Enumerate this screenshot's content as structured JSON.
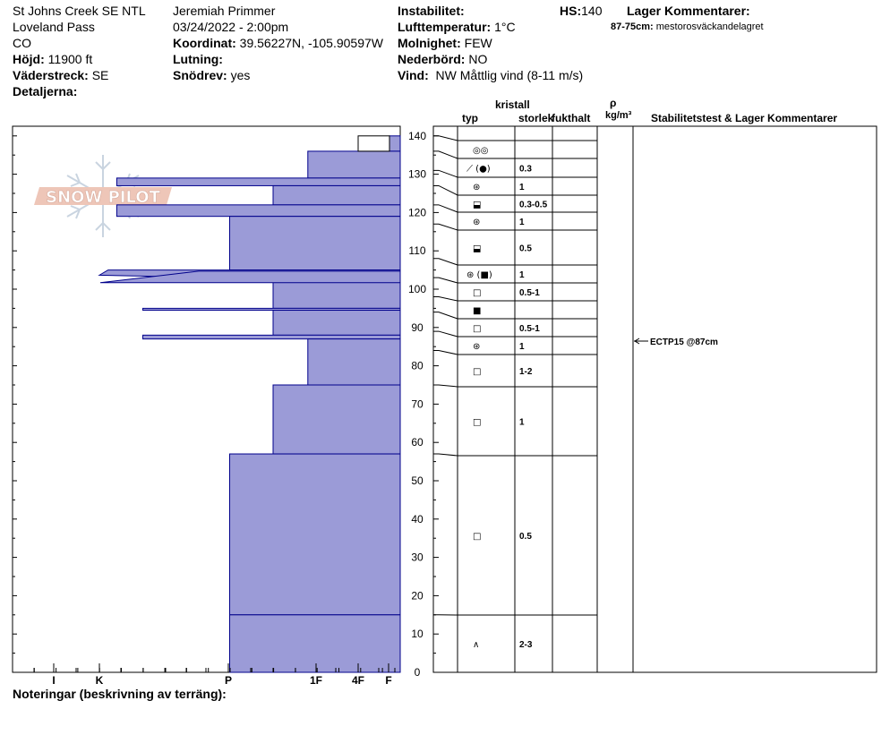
{
  "header": {
    "location": "St Johns Creek SE NTL",
    "area": "Loveland Pass",
    "state": "CO",
    "elevation_label": "Höjd:",
    "elevation_value": "11900 ft",
    "aspect_label": "Väderstreck:",
    "aspect_value": "SE",
    "details_label": "Detaljerna:",
    "observer": "Jeremiah Primmer",
    "datetime": "03/24/2022 - 2:00pm",
    "coord_label": "Koordinat:",
    "coord_value": "39.56227N, -105.90597W",
    "slope_label": "Lutning:",
    "slope_value": "",
    "blowing_label": "Snödrev:",
    "blowing_value": "yes",
    "instability_label": "Instabilitet:",
    "instability_value": "",
    "airtemp_label": "Lufttemperatur:",
    "airtemp_value": "1°C",
    "sky_label": "Molnighet:",
    "sky_value": "FEW",
    "precip_label": "Nederbörd:",
    "precip_value": "NO",
    "wind_label": "Vind:",
    "wind_value": "NW Måttlig vind (8-11 m/s)",
    "hs_label": "HS:",
    "hs_value": "140",
    "layer_comments_label": "Lager Kommentarer:",
    "layer_comment_range": "87-75cm:",
    "layer_comment_text": "mestorosväckandelagret",
    "notes_label": "Noteringar (beskrivning av terräng):"
  },
  "logo_text": "SNOW PILOT",
  "columns": {
    "crystal": "kristall",
    "type": "typ",
    "size": "storlek",
    "moisture": "fukthalt",
    "rho": "ρ",
    "density_unit": "kg/m³",
    "stability": "Stabilitetstest & Lager Kommentarer"
  },
  "hardness_scale": [
    "I",
    "K",
    "P",
    "1F",
    "4F",
    "F"
  ],
  "test_result": "ECTP15 @87cm",
  "test_depth": 87,
  "layer_colors": {
    "fill": "#9b9bd7",
    "stroke": "#00008b"
  },
  "chart_data": {
    "type": "snow-profile",
    "ylim": [
      0,
      140
    ],
    "y_ticks": [
      0,
      10,
      20,
      30,
      40,
      50,
      60,
      70,
      80,
      90,
      100,
      110,
      120,
      130,
      140
    ],
    "hardness_positions": {
      "I": 0,
      "K": 1,
      "P": 3,
      "1F": 5,
      "4F": 6,
      "F": 6.7,
      "Fist": 7
    },
    "hardness_profile": [
      {
        "bottom": 136,
        "top": 140,
        "hardness": "F-"
      },
      {
        "bottom": 129,
        "top": 136,
        "hardness": "F"
      },
      {
        "bottom": 127,
        "top": 129,
        "hardness": "P+"
      },
      {
        "bottom": 122,
        "top": 127,
        "hardness": "4F"
      },
      {
        "bottom": 119,
        "top": 122,
        "hardness": "P+"
      },
      {
        "bottom": 105,
        "top": 119,
        "hardness": "1F"
      },
      {
        "bottom": 102,
        "top": 105,
        "hardness": "P+ to I"
      },
      {
        "bottom": 95,
        "top": 102,
        "hardness": "4F"
      },
      {
        "bottom": 94.5,
        "top": 95,
        "hardness": "P"
      },
      {
        "bottom": 88,
        "top": 94.5,
        "hardness": "4F"
      },
      {
        "bottom": 87,
        "top": 88,
        "hardness": "P"
      },
      {
        "bottom": 75,
        "top": 87,
        "hardness": "F"
      },
      {
        "bottom": 57,
        "top": 75,
        "hardness": "4F"
      },
      {
        "bottom": 15,
        "top": 57,
        "hardness": "1F"
      },
      {
        "bottom": 0,
        "top": 15,
        "hardness": "1F"
      }
    ],
    "layers": [
      {
        "bottom": 136,
        "top": 140,
        "type": "◎◎",
        "size": ""
      },
      {
        "bottom": 131,
        "top": 136,
        "type": "⟋ (●)",
        "size": "0.3"
      },
      {
        "bottom": 127,
        "top": 131,
        "type": "⊛",
        "size": "1"
      },
      {
        "bottom": 122,
        "top": 127,
        "type": "⬓",
        "size": "0.3-0.5"
      },
      {
        "bottom": 117,
        "top": 122,
        "type": "⊛",
        "size": "1"
      },
      {
        "bottom": 108,
        "top": 117,
        "type": "⬓",
        "size": "0.5"
      },
      {
        "bottom": 103,
        "top": 108,
        "type": "⊛ (■)",
        "size": "1"
      },
      {
        "bottom": 98,
        "top": 103,
        "type": "□",
        "size": "0.5-1"
      },
      {
        "bottom": 94,
        "top": 98,
        "type": "■",
        "size": ""
      },
      {
        "bottom": 89,
        "top": 94,
        "type": "□",
        "size": "0.5-1"
      },
      {
        "bottom": 84,
        "top": 89,
        "type": "⊛",
        "size": "1"
      },
      {
        "bottom": 75,
        "top": 84,
        "type": "□",
        "size": "1-2"
      },
      {
        "bottom": 57,
        "top": 75,
        "type": "□",
        "size": "1"
      },
      {
        "bottom": 15,
        "top": 57,
        "type": "□",
        "size": "0.5"
      },
      {
        "bottom": 0,
        "top": 15,
        "type": "∧",
        "size": "2-3"
      }
    ]
  }
}
